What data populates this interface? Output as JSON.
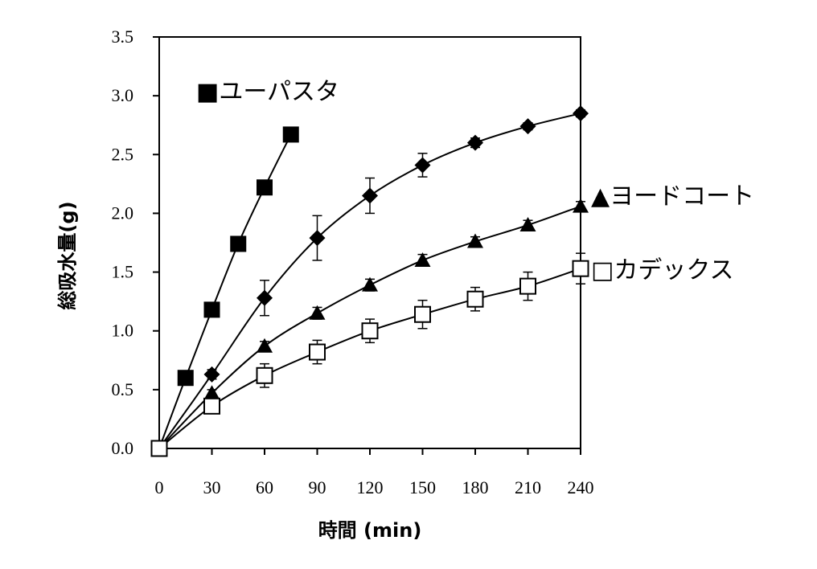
{
  "chart_data": {
    "type": "line",
    "xlabel": "時間 (min)",
    "ylabel": "総吸水量(g)",
    "xlim": [
      0,
      240
    ],
    "ylim": [
      0,
      3.5
    ],
    "xticks": [
      "0",
      "30",
      "60",
      "90",
      "120",
      "150",
      "180",
      "210",
      "240"
    ],
    "yticks": [
      "0.0",
      "0.5",
      "1.0",
      "1.5",
      "2.0",
      "2.5",
      "3.0",
      "3.5"
    ],
    "grid": false,
    "series": [
      {
        "name": "ユーパスタ",
        "legend_label": "■ユーパスタ",
        "marker": "filled-square",
        "x": [
          0,
          15,
          30,
          45,
          60,
          75
        ],
        "y": [
          0.0,
          0.6,
          1.18,
          1.74,
          2.22,
          2.67
        ],
        "err": [
          0,
          0,
          0,
          0,
          0,
          0
        ]
      },
      {
        "name": "",
        "legend_label": "",
        "marker": "filled-diamond",
        "x": [
          0,
          30,
          60,
          90,
          120,
          150,
          180,
          210,
          240
        ],
        "y": [
          0.0,
          0.63,
          1.28,
          1.79,
          2.15,
          2.41,
          2.6,
          2.74,
          2.85
        ],
        "err": [
          0,
          0.04,
          0.15,
          0.19,
          0.15,
          0.1,
          0.04,
          0.03,
          0.03
        ]
      },
      {
        "name": "ヨードコート",
        "legend_label": "▲ヨードコート",
        "marker": "filled-triangle",
        "x": [
          0,
          30,
          60,
          90,
          120,
          150,
          180,
          210,
          240
        ],
        "y": [
          0.0,
          0.47,
          0.87,
          1.15,
          1.39,
          1.6,
          1.76,
          1.9,
          2.06
        ],
        "err": [
          0,
          0.03,
          0.04,
          0.05,
          0.05,
          0.05,
          0.04,
          0.04,
          0.04
        ]
      },
      {
        "name": "カデックス",
        "legend_label": "□カデックス",
        "marker": "open-square",
        "x": [
          0,
          30,
          60,
          90,
          120,
          150,
          180,
          210,
          240
        ],
        "y": [
          0.0,
          0.36,
          0.62,
          0.82,
          1.0,
          1.14,
          1.27,
          1.38,
          1.53
        ],
        "err": [
          0,
          0.04,
          0.1,
          0.1,
          0.1,
          0.12,
          0.1,
          0.12,
          0.13
        ]
      }
    ]
  }
}
